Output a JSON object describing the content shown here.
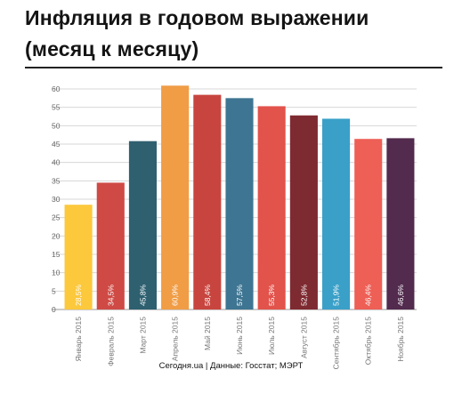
{
  "title_lines": [
    "Инфляция в годовом выражении",
    "(месяц к месяцу)"
  ],
  "source": "Сегодня.ua | Данные: Госстат; МЭРТ",
  "chart_data": {
    "type": "bar",
    "title": "Инфляция в годовом выражении (месяц к месяцу)",
    "xlabel": "",
    "ylabel": "",
    "ylim": [
      0,
      60
    ],
    "yticks": [
      0,
      5,
      10,
      15,
      20,
      25,
      30,
      35,
      40,
      45,
      50,
      55,
      60
    ],
    "grid": true,
    "legend": "none",
    "categories": [
      "Январь 2015",
      "Февраль 2015",
      "Март 2015",
      "Апрель 2015",
      "Май 2015",
      "Июнь 2015",
      "Июль 2015",
      "Август 2015",
      "Сентябрь 2015",
      "Октябрь 2015",
      "Ноябрь 2015"
    ],
    "values": [
      28.5,
      34.5,
      45.8,
      60.9,
      58.4,
      57.5,
      55.3,
      52.8,
      51.9,
      46.4,
      46.6
    ],
    "data_labels": [
      "28,5%",
      "34,5%",
      "45,8%",
      "60,9%",
      "58,4%",
      "57,5%",
      "55,3%",
      "52,8%",
      "51,9%",
      "46,4%",
      "46,6%"
    ],
    "colors": [
      "#fcc83c",
      "#cf4a45",
      "#2e6070",
      "#f09d46",
      "#c8453f",
      "#3e7592",
      "#e2534b",
      "#7e2a31",
      "#3aa0c8",
      "#ee5f56",
      "#522b4e"
    ]
  }
}
